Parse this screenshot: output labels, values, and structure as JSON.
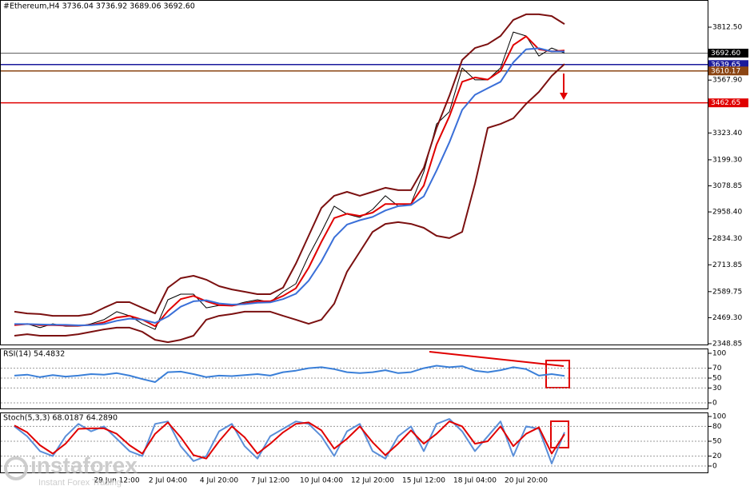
{
  "chart_data": [
    {
      "type": "line",
      "title": "#Ethereum,H4  3736.04 3736.92 3689.06 3692.60",
      "categories": [
        null,
        null,
        null,
        null,
        null,
        null,
        null,
        null,
        "29 Jun 12:00",
        null,
        null,
        null,
        "2 Jul 04:00",
        null,
        null,
        null,
        "4 Jul 20:00",
        null,
        null,
        null,
        "7 Jul 12:00",
        null,
        null,
        null,
        "10 Jul 04:00",
        null,
        null,
        null,
        "12 Jul 20:00",
        null,
        null,
        null,
        "15 Jul 12:00",
        null,
        null,
        null,
        "18 Jul 04:00",
        null,
        null,
        null,
        "20 Jul 20:00",
        null,
        null,
        null
      ],
      "series": [
        {
          "color": "#000000",
          "values": [
            2441,
            2441,
            2423,
            2441,
            2430,
            2430,
            2441,
            2460,
            2497,
            2478,
            2441,
            2415,
            2552,
            2578,
            2578,
            2515,
            2526,
            2526,
            2541,
            2552,
            2541,
            2589,
            2626,
            2755,
            2866,
            2985,
            2948,
            2933,
            2970,
            3033,
            2985,
            2996,
            3143,
            3365,
            3421,
            3624,
            3569,
            3569,
            3624,
            3790,
            3772,
            3679,
            3716,
            3692.6
          ]
        },
        {
          "color": "#7b1010",
          "values": [
            2497,
            2489,
            2486,
            2478,
            2478,
            2478,
            2486,
            2515,
            2541,
            2541,
            2515,
            2489,
            2608,
            2652,
            2663,
            2645,
            2615,
            2600,
            2589,
            2578,
            2578,
            2608,
            2719,
            2848,
            2977,
            3033,
            3051,
            3033,
            3051,
            3070,
            3059,
            3059,
            3162,
            3347,
            3495,
            3661,
            3716,
            3734,
            3772,
            3846,
            3872,
            3872,
            3864,
            3827
          ]
        },
        {
          "color": "#7b1010",
          "values": [
            2386,
            2393,
            2386,
            2386,
            2386,
            2393,
            2404,
            2415,
            2423,
            2423,
            2404,
            2367,
            2356,
            2367,
            2386,
            2460,
            2478,
            2486,
            2497,
            2497,
            2497,
            2478,
            2460,
            2441,
            2460,
            2534,
            2682,
            2774,
            2866,
            2903,
            2911,
            2903,
            2885,
            2848,
            2837,
            2866,
            3088,
            3347,
            3365,
            3391,
            3458,
            3513,
            3587,
            3642
          ]
        },
        {
          "color": "#e00000",
          "values": [
            2435,
            2440,
            2435,
            2435,
            2433,
            2432,
            2436,
            2448,
            2470,
            2478,
            2460,
            2430,
            2500,
            2555,
            2570,
            2545,
            2527,
            2525,
            2535,
            2545,
            2545,
            2570,
            2605,
            2700,
            2820,
            2930,
            2950,
            2940,
            2955,
            2995,
            2995,
            2995,
            3080,
            3270,
            3400,
            3560,
            3580,
            3570,
            3610,
            3730,
            3770,
            3710,
            3700,
            3705
          ]
        },
        {
          "color": "#3a6fd8",
          "values": [
            2440,
            2440,
            2438,
            2437,
            2436,
            2434,
            2435,
            2440,
            2455,
            2465,
            2460,
            2445,
            2475,
            2520,
            2545,
            2550,
            2535,
            2530,
            2532,
            2538,
            2540,
            2555,
            2580,
            2640,
            2730,
            2840,
            2900,
            2920,
            2935,
            2965,
            2985,
            2990,
            3030,
            3150,
            3280,
            3430,
            3500,
            3530,
            3560,
            3650,
            3710,
            3715,
            3700,
            3700
          ]
        }
      ],
      "ylim": [
        2341.5,
        3938.2
      ],
      "yticks": [
        {
          "value": 3812.5,
          "label": "3812.50"
        },
        {
          "value": 3567.9,
          "label": "3567.90"
        },
        {
          "value": 3323.4,
          "label": "3323.40"
        },
        {
          "value": 3199.3,
          "label": "3199.30"
        },
        3078.85,
        {
          "value": 2958.4,
          "label": "2958.40"
        },
        {
          "value": 2834.3,
          "label": "2834.30"
        },
        2713.85,
        2589.75,
        {
          "value": 2469.3,
          "label": "2469.30"
        },
        2348.85
      ],
      "levels": [
        {
          "value": 3692.6,
          "label": "3692.60",
          "color": "#000000"
        },
        {
          "value": 3639.65,
          "color": "#1a1a9c"
        },
        {
          "value": 3610.17,
          "color": "#8b4513"
        },
        {
          "value": 3462.65,
          "color": "#e00000"
        }
      ]
    },
    {
      "type": "line",
      "title": "RSI(14) 54.4832",
      "series": [
        {
          "color": "#3a7fd8",
          "values": [
            55,
            57,
            52,
            56,
            53,
            55,
            58,
            57,
            60,
            55,
            48,
            42,
            62,
            63,
            58,
            52,
            55,
            54,
            56,
            58,
            55,
            62,
            65,
            70,
            72,
            68,
            62,
            60,
            62,
            66,
            60,
            62,
            70,
            75,
            72,
            74,
            65,
            62,
            66,
            72,
            68,
            55,
            58,
            54.4832
          ]
        }
      ],
      "ylim": [
        -12.9,
        109.7
      ],
      "yticks": [
        100,
        70,
        50,
        30,
        0
      ]
    },
    {
      "type": "line",
      "title": "Stoch(5,3,3) 68.0187 64.2890",
      "series": [
        {
          "color": "#5b8fd8",
          "values": [
            80,
            60,
            30,
            20,
            60,
            85,
            70,
            80,
            55,
            30,
            20,
            85,
            90,
            40,
            10,
            20,
            70,
            85,
            40,
            15,
            60,
            75,
            90,
            85,
            60,
            20,
            70,
            85,
            30,
            15,
            60,
            80,
            30,
            85,
            95,
            70,
            30,
            60,
            90,
            20,
            80,
            75,
            5,
            68.0187
          ]
        },
        {
          "color": "#e00000",
          "values": [
            82,
            68,
            42,
            25,
            45,
            75,
            76,
            76,
            65,
            42,
            25,
            65,
            88,
            58,
            22,
            15,
            50,
            80,
            58,
            25,
            45,
            68,
            85,
            88,
            72,
            35,
            55,
            80,
            48,
            22,
            45,
            72,
            45,
            65,
            90,
            80,
            45,
            50,
            80,
            40,
            65,
            78,
            25,
            64.289
          ]
        }
      ],
      "ylim": [
        -14.5,
        108.1
      ],
      "yticks": [
        100,
        80,
        50,
        20,
        0
      ]
    }
  ],
  "watermark": {
    "brand": "instaforex",
    "tagline": "Instant Forex Trading"
  }
}
